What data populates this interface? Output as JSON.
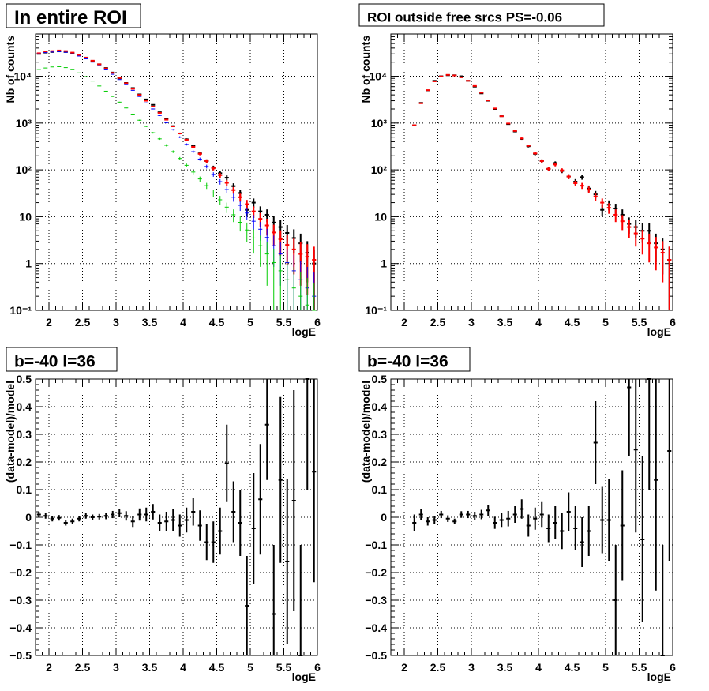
{
  "colors": {
    "data": "#000000",
    "model_total": "#ff0000",
    "model_blue": "#0000ff",
    "model_green": "#00cc00",
    "grid": "#000000",
    "background": "#ffffff"
  },
  "chart_data": [
    {
      "type": "scatter",
      "title": "In entire ROI",
      "xlabel": "logE",
      "ylabel": "Nb of counts",
      "xlim": [
        1.8,
        6.0
      ],
      "ylim": [
        0.1,
        80000
      ],
      "yscale": "log",
      "grid": true,
      "x_ticks": [
        "2",
        "2.5",
        "3",
        "3.5",
        "4",
        "4.5",
        "5",
        "5.5",
        "6"
      ],
      "y_ticks": [
        "10⁻¹",
        "1",
        "10",
        "10²",
        "10³",
        "10⁴"
      ],
      "x_bin_half_width": 0.05,
      "x": [
        1.85,
        1.95,
        2.05,
        2.15,
        2.25,
        2.35,
        2.45,
        2.55,
        2.65,
        2.75,
        2.85,
        2.95,
        3.05,
        3.15,
        3.25,
        3.35,
        3.45,
        3.55,
        3.65,
        3.75,
        3.85,
        3.95,
        4.05,
        4.15,
        4.25,
        4.35,
        4.45,
        4.55,
        4.65,
        4.75,
        4.85,
        4.95,
        5.05,
        5.15,
        5.25,
        5.35,
        5.45,
        5.55,
        5.65,
        5.75,
        5.85,
        5.95
      ],
      "series": [
        {
          "role": "data",
          "color": "#000000",
          "values": [
            30000,
            32000,
            33000,
            34000,
            33000,
            31000,
            28000,
            25000,
            21000,
            18000,
            15000,
            12000,
            9000,
            7200,
            5600,
            4100,
            3200,
            2450,
            1700,
            1250,
            860,
            600,
            450,
            330,
            225,
            155,
            112,
            85,
            68,
            45,
            32,
            14,
            20,
            13,
            11,
            7.5,
            6,
            4.5,
            3.5,
            2.7,
            1.7,
            1.0
          ]
        },
        {
          "role": "model",
          "color": "#ff0000",
          "values": [
            31000,
            33500,
            34500,
            35500,
            34500,
            32000,
            28500,
            25000,
            21500,
            18000,
            14700,
            11800,
            9200,
            7100,
            5400,
            4000,
            3000,
            2250,
            1650,
            1180,
            850,
            600,
            440,
            310,
            220,
            155,
            108,
            77,
            53,
            37,
            26,
            18.5,
            13,
            9,
            6.5,
            4.6,
            3.3,
            2.5,
            2.0,
            1.6,
            1.4,
            1.2
          ]
        },
        {
          "role": "model",
          "color": "#0000ff",
          "values": [
            30000,
            32000,
            33000,
            33500,
            32500,
            30000,
            27000,
            23500,
            20000,
            16800,
            13700,
            11000,
            8500,
            6600,
            5000,
            3700,
            2700,
            2000,
            1450,
            1020,
            720,
            500,
            350,
            245,
            170,
            118,
            80,
            56,
            38,
            26,
            17.5,
            12,
            8,
            5.4,
            3.6,
            2.4,
            1.6,
            1.05,
            0.7,
            0.45,
            0.3,
            0.2
          ]
        },
        {
          "role": "model",
          "color": "#00cc00",
          "values": [
            14000,
            15000,
            15800,
            16000,
            15300,
            13800,
            11800,
            9800,
            7900,
            6200,
            4800,
            3700,
            2800,
            2100,
            1550,
            1150,
            850,
            620,
            460,
            335,
            245,
            175,
            125,
            90,
            64,
            46,
            32,
            23,
            16,
            11,
            7.6,
            5.2,
            3.5,
            2.4,
            1.6,
            1.05,
            0.7,
            0.45,
            0.3,
            0.2,
            0.13,
            0.09
          ]
        }
      ]
    },
    {
      "type": "scatter",
      "title": "ROI outside free srcs PS=-0.06",
      "xlabel": "logE",
      "ylabel": "Nb of counts",
      "xlim": [
        1.8,
        6.0
      ],
      "ylim": [
        0.1,
        80000
      ],
      "yscale": "log",
      "grid": true,
      "x_ticks": [
        "2",
        "2.5",
        "3",
        "3.5",
        "4",
        "4.5",
        "5",
        "5.5",
        "6"
      ],
      "y_ticks": [
        "10⁻¹",
        "1",
        "10",
        "10²",
        "10³",
        "10⁴"
      ],
      "x_bin_half_width": 0.05,
      "x": [
        2.15,
        2.25,
        2.35,
        2.45,
        2.55,
        2.65,
        2.75,
        2.85,
        2.95,
        3.05,
        3.15,
        3.25,
        3.35,
        3.45,
        3.55,
        3.65,
        3.75,
        3.85,
        3.95,
        4.05,
        4.15,
        4.25,
        4.35,
        4.45,
        4.55,
        4.65,
        4.75,
        4.85,
        4.95,
        5.05,
        5.15,
        5.25,
        5.35,
        5.45,
        5.55,
        5.65,
        5.75,
        5.85,
        5.95
      ],
      "series": [
        {
          "role": "data",
          "color": "#000000",
          "values": [
            900,
            2700,
            5000,
            8000,
            10000,
            10500,
            10500,
            10000,
            8000,
            6000,
            4300,
            3000,
            2000,
            1400,
            950,
            660,
            460,
            320,
            220,
            155,
            105,
            140,
            95,
            72,
            56,
            70,
            40,
            30,
            14,
            18,
            15,
            11,
            7,
            6,
            5,
            5,
            2.7,
            2.0,
            1.2
          ]
        },
        {
          "role": "model",
          "color": "#ff0000",
          "values": [
            900,
            2650,
            5050,
            7800,
            9900,
            10700,
            10400,
            9500,
            8000,
            6200,
            4450,
            3050,
            2050,
            1400,
            980,
            680,
            470,
            330,
            225,
            155,
            105,
            130,
            98,
            72,
            52,
            46,
            38,
            27,
            20,
            15.5,
            11,
            8,
            6,
            4.4,
            3.4,
            2.7,
            2.2,
            1.7,
            1.2
          ]
        }
      ]
    },
    {
      "type": "scatter",
      "title": "b=-40 l=36",
      "xlabel": "logE",
      "ylabel": "(data-model)/model",
      "xlim": [
        1.8,
        6.0
      ],
      "ylim": [
        -0.5,
        0.5
      ],
      "grid": true,
      "x_ticks": [
        "2",
        "2.5",
        "3",
        "3.5",
        "4",
        "4.5",
        "5",
        "5.5",
        "6"
      ],
      "y_ticks": [
        "−0.5",
        "−0.4",
        "−0.3",
        "−0.2",
        "−0.1",
        "0",
        "0.1",
        "0.2",
        "0.3",
        "0.4",
        "0.5"
      ],
      "x_bin_half_width": 0.05,
      "x": [
        1.85,
        1.95,
        2.05,
        2.15,
        2.25,
        2.35,
        2.45,
        2.55,
        2.65,
        2.75,
        2.85,
        2.95,
        3.05,
        3.15,
        3.25,
        3.35,
        3.45,
        3.55,
        3.65,
        3.75,
        3.85,
        3.95,
        4.05,
        4.15,
        4.25,
        4.35,
        4.45,
        4.55,
        4.65,
        4.75,
        4.85,
        4.95,
        5.05,
        5.15,
        5.25,
        5.35,
        5.45,
        5.55,
        5.65,
        5.75,
        5.85,
        5.95
      ],
      "series": [
        {
          "role": "data",
          "color": "#000000",
          "values": [
            0.01,
            0.005,
            -0.005,
            -0.002,
            -0.02,
            -0.015,
            -0.005,
            0.005,
            0.0,
            0.002,
            0.005,
            0.01,
            0.015,
            0.005,
            -0.015,
            0.01,
            0.01,
            0.02,
            -0.02,
            -0.015,
            -0.01,
            -0.03,
            -0.01,
            0.02,
            -0.03,
            -0.09,
            -0.09,
            -0.05,
            0.195,
            0.02,
            -0.02,
            -0.32,
            -0.04,
            0.065,
            0.335,
            -0.35,
            0.135,
            -0.16,
            0.06,
            -0.5,
            0.5,
            0.165
          ],
          "errors": [
            0.01,
            0.01,
            0.01,
            0.01,
            0.01,
            0.01,
            0.01,
            0.01,
            0.01,
            0.01,
            0.012,
            0.013,
            0.015,
            0.017,
            0.02,
            0.022,
            0.025,
            0.028,
            0.03,
            0.035,
            0.04,
            0.04,
            0.045,
            0.05,
            0.055,
            0.065,
            0.075,
            0.085,
            0.14,
            0.11,
            0.12,
            0.18,
            0.2,
            0.2,
            0.2,
            0.25,
            0.3,
            0.3,
            0.4,
            0.4,
            0.4,
            0.4
          ]
        }
      ]
    },
    {
      "type": "scatter",
      "title": "b=-40 l=36",
      "xlabel": "logE",
      "ylabel": "(data-model)/model",
      "xlim": [
        1.8,
        6.0
      ],
      "ylim": [
        -0.5,
        0.5
      ],
      "grid": true,
      "x_ticks": [
        "2",
        "2.5",
        "3",
        "3.5",
        "4",
        "4.5",
        "5",
        "5.5",
        "6"
      ],
      "y_ticks": [
        "−0.5",
        "−0.4",
        "−0.3",
        "−0.2",
        "−0.1",
        "0",
        "0.1",
        "0.2",
        "0.3",
        "0.4",
        "0.5"
      ],
      "x_bin_half_width": 0.05,
      "x": [
        2.15,
        2.25,
        2.35,
        2.45,
        2.55,
        2.65,
        2.75,
        2.85,
        2.95,
        3.05,
        3.15,
        3.25,
        3.35,
        3.45,
        3.55,
        3.65,
        3.75,
        3.85,
        3.95,
        4.05,
        4.15,
        4.25,
        4.35,
        4.45,
        4.55,
        4.65,
        4.75,
        4.85,
        4.95,
        5.05,
        5.15,
        5.25,
        5.35,
        5.45,
        5.55,
        5.65,
        5.75,
        5.85,
        5.95
      ],
      "series": [
        {
          "role": "data",
          "color": "#000000",
          "values": [
            -0.02,
            0.01,
            -0.015,
            -0.01,
            0.01,
            -0.005,
            -0.015,
            0.01,
            0.01,
            0.005,
            0.01,
            0.025,
            -0.02,
            -0.01,
            -0.005,
            0.01,
            0.03,
            -0.03,
            -0.005,
            0.01,
            -0.04,
            -0.02,
            -0.05,
            0.02,
            -0.04,
            -0.09,
            -0.05,
            0.27,
            -0.01,
            -0.01,
            -0.3,
            -0.03,
            0.47,
            0.245,
            -0.08,
            0.5,
            0.135,
            -0.5,
            0.24
          ],
          "errors": [
            0.03,
            0.02,
            0.015,
            0.015,
            0.013,
            0.012,
            0.01,
            0.012,
            0.013,
            0.015,
            0.017,
            0.02,
            0.022,
            0.025,
            0.028,
            0.03,
            0.035,
            0.04,
            0.04,
            0.045,
            0.05,
            0.06,
            0.065,
            0.07,
            0.08,
            0.09,
            0.09,
            0.15,
            0.12,
            0.15,
            0.2,
            0.2,
            0.25,
            0.3,
            0.3,
            0.4,
            0.4,
            0.4,
            0.4
          ]
        }
      ]
    }
  ]
}
